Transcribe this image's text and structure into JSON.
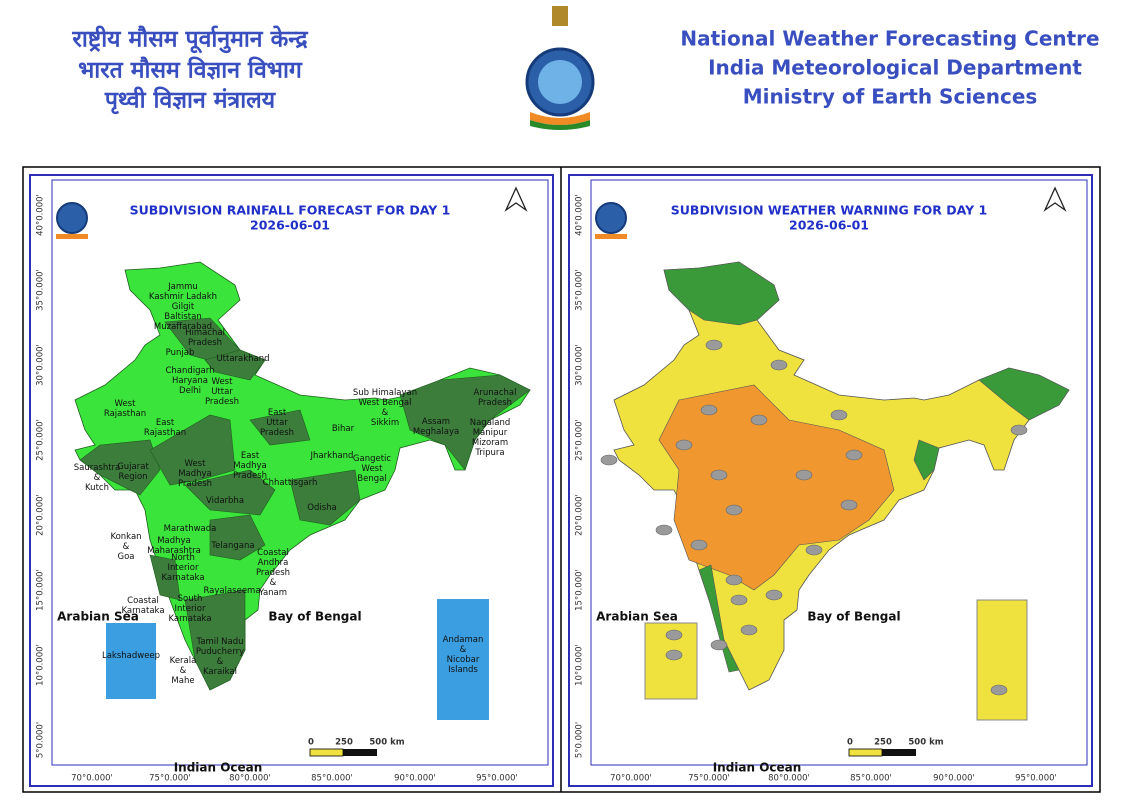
{
  "header": {
    "hindi": [
      "राष्ट्रीय मौसम पूर्वानुमान केन्द्र",
      "भारत मौसम विज्ञान विभाग",
      "पृथ्वी विज्ञान मंत्रालय"
    ],
    "english": [
      "National Weather Forecasting Centre",
      "India Meteorological Department",
      "Ministry of Earth Sciences"
    ]
  },
  "maps": [
    {
      "title": "SUBDIVISION RAINFALL FORECAST FOR DAY 1",
      "date": "2026-06-01",
      "lat_labels": [
        "40°0.000'",
        "35°0.000'",
        "30°0.000'",
        "25°0.000'",
        "20°0.000'",
        "15°0.000'",
        "10°0.000'",
        "5°0.000'"
      ],
      "lon_labels": [
        "70°0.000'",
        "75°0.000'",
        "80°0.000'",
        "85°0.000'",
        "90°0.000'",
        "95°0.000'"
      ],
      "seas": [
        "Arabian Sea",
        "Bay of Bengal",
        "Indian Ocean"
      ],
      "scale": [
        "0",
        "250",
        "500 km"
      ],
      "regions": [
        [
          "Jammu",
          "Kashmir Ladakh",
          "Gilgit",
          "Baltistan",
          "Muzaffarabad"
        ],
        [
          "Himachal",
          "Pradesh"
        ],
        [
          "Punjab"
        ],
        [
          "Uttarakhand"
        ],
        [
          "Chandigarh",
          "Haryana",
          "Delhi"
        ],
        [
          "West",
          "Uttar",
          "Pradesh"
        ],
        [
          "West",
          "Rajasthan"
        ],
        [
          "East",
          "Uttar",
          "Pradesh"
        ],
        [
          "Bihar"
        ],
        [
          "Sub Himalayan",
          "West Bengal",
          "&",
          "Sikkim"
        ],
        [
          "Arunachal",
          "Pradesh"
        ],
        [
          "Assam",
          "Meghalaya"
        ],
        [
          "Nagaland",
          "Manipur",
          "Mizoram",
          "Tripura"
        ],
        [
          "East",
          "Rajasthan"
        ],
        [
          "Jharkhand"
        ],
        [
          "Gangetic",
          "West",
          "Bengal"
        ],
        [
          "West",
          "Madhya",
          "Pradesh"
        ],
        [
          "East",
          "Madhya",
          "Pradesh"
        ],
        [
          "Saurashtra",
          "&",
          "Kutch"
        ],
        [
          "Gujarat",
          "Region"
        ],
        [
          "Chhattisgarh"
        ],
        [
          "Vidarbha"
        ],
        [
          "Odisha"
        ],
        [
          "Marathwada"
        ],
        [
          "Konkan",
          "&",
          "Goa"
        ],
        [
          "Madhya",
          "Maharashtra"
        ],
        [
          "Telangana"
        ],
        [
          "Coastal",
          "Andhra",
          "Pradesh",
          "&",
          "Yanam"
        ],
        [
          "North",
          "Interior",
          "Karnataka"
        ],
        [
          "Rayalaseema"
        ],
        [
          "Coastal",
          "Karnataka"
        ],
        [
          "South",
          "Interior",
          "Karnataka"
        ],
        [
          "Lakshadweep"
        ],
        [
          "Andaman",
          "&",
          "Nicobar",
          "Islands"
        ],
        [
          "Tamil Nadu",
          "Puducherry",
          "&",
          "Karaikal"
        ],
        [
          "Kerala",
          "&",
          "Mahe"
        ]
      ]
    },
    {
      "title": "SUBDIVISION WEATHER WARNING FOR DAY 1",
      "date": "2026-06-01",
      "lat_labels": [
        "40°0.000'",
        "35°0.000'",
        "30°0.000'",
        "25°0.000'",
        "20°0.000'",
        "15°0.000'",
        "10°0.000'",
        "5°0.000'"
      ],
      "lon_labels": [
        "70°0.000'",
        "75°0.000'",
        "80°0.000'",
        "85°0.000'",
        "90°0.000'",
        "95°0.000'"
      ],
      "seas": [
        "Arabian Sea",
        "Bay of Bengal",
        "Indian Ocean"
      ],
      "scale": [
        "0",
        "250",
        "500 km"
      ]
    }
  ]
}
